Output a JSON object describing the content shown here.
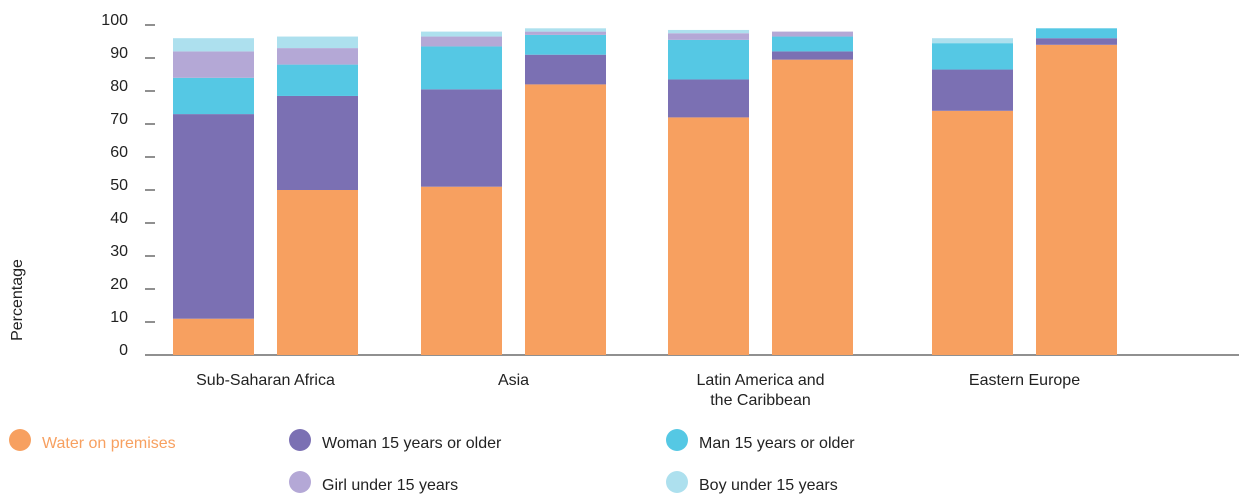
{
  "chart_data": {
    "type": "stacked_bar",
    "y_label": "Percentage",
    "categories": [
      "Sub-Saharan Africa",
      null,
      "Asia",
      null,
      "Latin America and the Caribbean",
      null,
      "Eastern Europe",
      null
    ],
    "series": [
      {
        "name": "Water on premises",
        "color": "#f7a060",
        "values": [
          11,
          50,
          51,
          82,
          72,
          89.5,
          74,
          94
        ]
      },
      {
        "name": "Woman 15 years or older",
        "color": "#7b70b3",
        "values": [
          62,
          28.5,
          29.5,
          9,
          11.5,
          2.5,
          12.5,
          2
        ]
      },
      {
        "name": "Man 15 years or older",
        "color": "#55c8e4",
        "values": [
          11,
          9.5,
          13,
          6,
          12,
          4.5,
          8,
          3
        ]
      },
      {
        "name": "Girl under 15 years",
        "color": "#b4a8d6",
        "values": [
          8,
          5,
          3,
          1,
          2,
          1.5,
          0,
          0
        ]
      },
      {
        "name": "Boy under 15 years",
        "color": "#ade0ee",
        "values": [
          4,
          3.5,
          1.5,
          1,
          1,
          0,
          1.5,
          0
        ]
      }
    ],
    "ylim": [
      0,
      100
    ],
    "yticks": [
      0,
      10,
      20,
      30,
      40,
      50,
      60,
      70,
      80,
      90,
      100
    ]
  }
}
